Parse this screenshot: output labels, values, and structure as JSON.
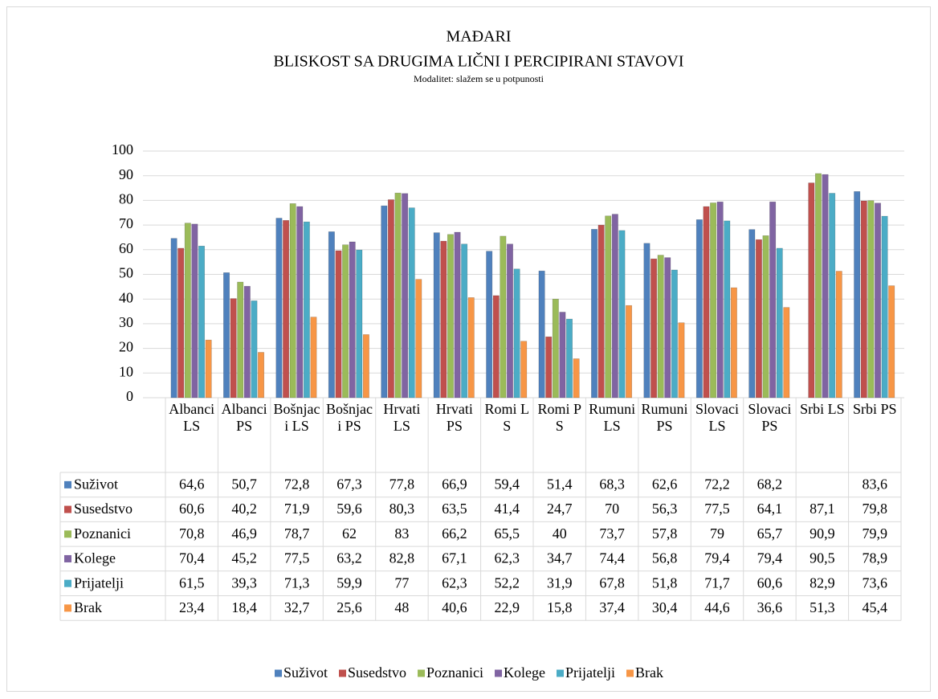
{
  "chart_data": {
    "type": "bar",
    "title": "MAĐARI",
    "subtitle": "BLISKOST SA DRUGIMA LIČNI I PERCIPIRANI STAVOVI",
    "note": "Modalitet: slažem se u potpunosti",
    "categories": [
      "Albanci LS",
      "Albanci PS",
      "Bošnjaci LS",
      "Bošnjaci PS",
      "Hrvati LS",
      "Hrvati PS",
      "Romi LS",
      "Romi PS",
      "Rumuni LS",
      "Rumuni PS",
      "Slovaci LS",
      "Slovaci PS",
      "Srbi LS",
      "Srbi PS"
    ],
    "series": [
      {
        "name": "Suživot",
        "color": "#4f81bd",
        "values": [
          64.6,
          50.7,
          72.8,
          67.3,
          77.8,
          66.9,
          59.4,
          51.4,
          68.3,
          62.6,
          72.2,
          68.2,
          null,
          83.6
        ],
        "value_labels": [
          "64,6",
          "50,7",
          "72,8",
          "67,3",
          "77,8",
          "66,9",
          "59,4",
          "51,4",
          "68,3",
          "62,6",
          "72,2",
          "68,2",
          null,
          "83,6"
        ]
      },
      {
        "name": "Susedstvo",
        "color": "#c0504d",
        "values": [
          60.6,
          40.2,
          71.9,
          59.6,
          80.3,
          63.5,
          41.4,
          24.7,
          70,
          56.3,
          77.5,
          64.1,
          87.1,
          79.8
        ],
        "value_labels": [
          "60,6",
          "40,2",
          "71,9",
          "59,6",
          "80,3",
          "63,5",
          "41,4",
          "24,7",
          "70",
          "56,3",
          "77,5",
          "64,1",
          "87,1",
          "79,8"
        ]
      },
      {
        "name": "Poznanici",
        "color": "#9bbb59",
        "values": [
          70.8,
          46.9,
          78.7,
          62,
          83,
          66.2,
          65.5,
          40,
          73.7,
          57.8,
          79,
          65.7,
          90.9,
          79.9
        ],
        "value_labels": [
          "70,8",
          "46,9",
          "78,7",
          "62",
          "83",
          "66,2",
          "65,5",
          "40",
          "73,7",
          "57,8",
          "79",
          "65,7",
          "90,9",
          "79,9"
        ]
      },
      {
        "name": "Kolege",
        "color": "#8064a2",
        "values": [
          70.4,
          45.2,
          77.5,
          63.2,
          82.8,
          67.1,
          62.3,
          34.7,
          74.4,
          56.8,
          79.4,
          79.4,
          90.5,
          78.9
        ],
        "value_labels": [
          "70,4",
          "45,2",
          "77,5",
          "63,2",
          "82,8",
          "67,1",
          "62,3",
          "34,7",
          "74,4",
          "56,8",
          "79,4",
          "79,4",
          "90,5",
          "78,9"
        ]
      },
      {
        "name": "Prijatelji",
        "color": "#4bacc6",
        "values": [
          61.5,
          39.3,
          71.3,
          59.9,
          77,
          62.3,
          52.2,
          31.9,
          67.8,
          51.8,
          71.7,
          60.6,
          82.9,
          73.6
        ],
        "value_labels": [
          "61,5",
          "39,3",
          "71,3",
          "59,9",
          "77",
          "62,3",
          "52,2",
          "31,9",
          "67,8",
          "51,8",
          "71,7",
          "60,6",
          "82,9",
          "73,6"
        ]
      },
      {
        "name": "Brak",
        "color": "#f79646",
        "values": [
          23.4,
          18.4,
          32.7,
          25.6,
          48,
          40.6,
          22.9,
          15.8,
          37.4,
          30.4,
          44.6,
          36.6,
          51.3,
          45.4
        ],
        "value_labels": [
          "23,4",
          "18,4",
          "32,7",
          "25,6",
          "48",
          "40,6",
          "22,9",
          "15,8",
          "37,4",
          "30,4",
          "44,6",
          "36,6",
          "51,3",
          "45,4"
        ]
      }
    ],
    "ylim": [
      0,
      100
    ],
    "yticks": [
      0,
      10,
      20,
      30,
      40,
      50,
      60,
      70,
      80,
      90,
      100
    ],
    "grid": true,
    "legend": "bottom"
  }
}
